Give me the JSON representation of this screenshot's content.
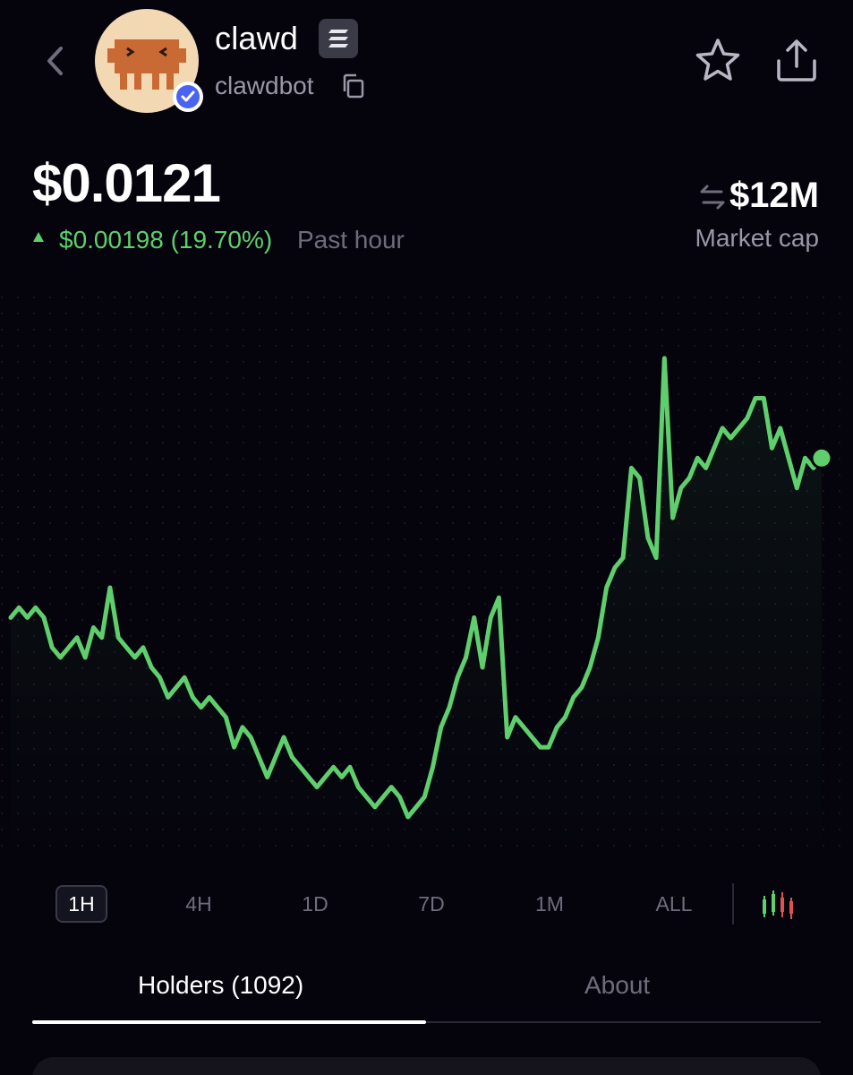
{
  "header": {
    "token_name": "clawd",
    "handle": "clawdbot",
    "chain_icon": "solana-icon",
    "icons": [
      "back-chevron-icon",
      "verified-badge-icon",
      "copy-icon",
      "star-icon",
      "share-icon"
    ]
  },
  "price": {
    "value": "$0.0121",
    "change": "$0.00198 (19.70%)",
    "period": "Past hour",
    "change_color": "#5fcf6d"
  },
  "market_cap": {
    "value": "$12M",
    "label": "Market cap"
  },
  "timeframes": {
    "items": [
      "1H",
      "4H",
      "1D",
      "7D",
      "1M",
      "ALL"
    ],
    "selected": "1H"
  },
  "tabs": {
    "holders": "Holders (1092)",
    "about": "About",
    "selected": "Holders (1092)"
  },
  "chart_data": {
    "type": "line",
    "title": "",
    "xlabel": "",
    "ylabel": "",
    "line_color": "#5fcf6d",
    "grid": "dotted",
    "series": [
      {
        "values": [
          0.0105,
          0.0106,
          0.0105,
          0.0106,
          0.0105,
          0.0102,
          0.0101,
          0.0102,
          0.0103,
          0.0101,
          0.0104,
          0.0103,
          0.0108,
          0.0103,
          0.0102,
          0.0101,
          0.0102,
          0.01,
          0.0099,
          0.0097,
          0.0098,
          0.0099,
          0.0097,
          0.0096,
          0.0097,
          0.0096,
          0.0095,
          0.0092,
          0.0094,
          0.0093,
          0.0091,
          0.0089,
          0.0091,
          0.0093,
          0.0091,
          0.009,
          0.0089,
          0.0088,
          0.0089,
          0.009,
          0.0089,
          0.009,
          0.0088,
          0.0087,
          0.0086,
          0.0087,
          0.0088,
          0.0087,
          0.0085,
          0.0086,
          0.0087,
          0.009,
          0.0094,
          0.0096,
          0.0099,
          0.0101,
          0.0105,
          0.01,
          0.0105,
          0.0107,
          0.0093,
          0.0095,
          0.0094,
          0.0093,
          0.0092,
          0.0092,
          0.0094,
          0.0095,
          0.0097,
          0.0098,
          0.01,
          0.0103,
          0.0108,
          0.011,
          0.0111,
          0.012,
          0.0119,
          0.0113,
          0.0111,
          0.0131,
          0.0115,
          0.0118,
          0.0119,
          0.0121,
          0.012,
          0.0122,
          0.0124,
          0.0123,
          0.0124,
          0.0125,
          0.0127,
          0.0127,
          0.0122,
          0.0124,
          0.0121,
          0.0118,
          0.0121,
          0.012,
          0.0121
        ]
      }
    ]
  }
}
